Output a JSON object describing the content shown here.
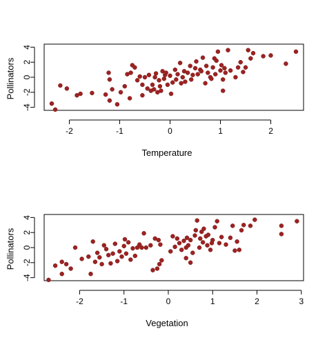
{
  "chart_data": [
    {
      "type": "scatter",
      "xlabel": "Temperature",
      "ylabel": "Pollinators",
      "xlim": [
        -2.5,
        2.65
      ],
      "ylim": [
        -4.4,
        4.4
      ],
      "xticks": [
        -2,
        -1,
        0,
        1,
        2
      ],
      "yticks": [
        -4,
        -2,
        0,
        2,
        4
      ],
      "grid": false,
      "point_color": "#9b2322",
      "points": [
        [
          -2.35,
          -3.5
        ],
        [
          -2.28,
          -4.3
        ],
        [
          -2.18,
          -1.1
        ],
        [
          -2.05,
          -1.5
        ],
        [
          -1.85,
          -2.4
        ],
        [
          -1.78,
          -2.2
        ],
        [
          -1.55,
          -2.1
        ],
        [
          -1.28,
          -2.3
        ],
        [
          -1.22,
          0.6
        ],
        [
          -1.2,
          -0.3
        ],
        [
          -1.2,
          -3.1
        ],
        [
          -1.15,
          -1.6
        ],
        [
          -1.05,
          -3.6
        ],
        [
          -0.98,
          -2.0
        ],
        [
          -0.9,
          -1.2
        ],
        [
          -0.85,
          0.4
        ],
        [
          -0.8,
          -2.8
        ],
        [
          -0.78,
          0.6
        ],
        [
          -0.75,
          1.6
        ],
        [
          -0.7,
          1.3
        ],
        [
          -0.65,
          -0.4
        ],
        [
          -0.6,
          0.1
        ],
        [
          -0.55,
          -1.0
        ],
        [
          -0.55,
          -2.4
        ],
        [
          -0.5,
          0.0
        ],
        [
          -0.45,
          -1.5
        ],
        [
          -0.42,
          0.3
        ],
        [
          -0.38,
          -1.8
        ],
        [
          -0.35,
          -1.0
        ],
        [
          -0.32,
          -1.6
        ],
        [
          -0.3,
          0.0
        ],
        [
          -0.28,
          0.5
        ],
        [
          -0.25,
          -2.0
        ],
        [
          -0.22,
          -0.4
        ],
        [
          -0.2,
          -1.2
        ],
        [
          -0.18,
          -1.8
        ],
        [
          -0.15,
          0.8
        ],
        [
          -0.12,
          -0.2
        ],
        [
          -0.1,
          0.3
        ],
        [
          -0.08,
          0.6
        ],
        [
          -0.05,
          -1.0
        ],
        [
          0.0,
          0.2
        ],
        [
          0.02,
          -2.2
        ],
        [
          0.05,
          -0.7
        ],
        [
          0.1,
          1.0
        ],
        [
          0.12,
          -0.3
        ],
        [
          0.15,
          0.4
        ],
        [
          0.2,
          1.9
        ],
        [
          0.22,
          -0.8
        ],
        [
          0.25,
          0.0
        ],
        [
          0.28,
          0.8
        ],
        [
          0.3,
          -0.6
        ],
        [
          0.35,
          0.6
        ],
        [
          0.4,
          1.5
        ],
        [
          0.42,
          -0.3
        ],
        [
          0.45,
          0.3
        ],
        [
          0.5,
          1.2
        ],
        [
          0.52,
          2.1
        ],
        [
          0.55,
          0.4
        ],
        [
          0.6,
          1.0
        ],
        [
          0.62,
          0.8
        ],
        [
          0.65,
          2.6
        ],
        [
          0.7,
          -0.8
        ],
        [
          0.72,
          1.5
        ],
        [
          0.75,
          0.6
        ],
        [
          0.8,
          0.0
        ],
        [
          0.82,
          -0.2
        ],
        [
          0.85,
          1.3
        ],
        [
          0.88,
          2.5
        ],
        [
          0.9,
          0.4
        ],
        [
          0.92,
          2.2
        ],
        [
          0.95,
          3.4
        ],
        [
          1.0,
          0.9
        ],
        [
          1.02,
          1.6
        ],
        [
          1.05,
          -0.3
        ],
        [
          1.05,
          -1.8
        ],
        [
          1.08,
          1.2
        ],
        [
          1.1,
          0.6
        ],
        [
          1.15,
          3.6
        ],
        [
          1.2,
          0.9
        ],
        [
          1.3,
          0.0
        ],
        [
          1.35,
          1.3
        ],
        [
          1.4,
          2.0
        ],
        [
          1.45,
          0.7
        ],
        [
          1.5,
          1.3
        ],
        [
          1.55,
          3.6
        ],
        [
          1.6,
          2.5
        ],
        [
          1.65,
          3.2
        ],
        [
          1.85,
          2.8
        ],
        [
          2.0,
          2.9
        ],
        [
          2.3,
          1.8
        ],
        [
          2.5,
          3.4
        ]
      ]
    },
    {
      "type": "scatter",
      "xlabel": "Vegetation",
      "ylabel": "Pollinators",
      "xlim": [
        -2.8,
        3.05
      ],
      "ylim": [
        -4.4,
        4.4
      ],
      "xticks": [
        -2,
        -1,
        0,
        1,
        2,
        3
      ],
      "yticks": [
        -4,
        -2,
        0,
        2,
        4
      ],
      "grid": false,
      "point_color": "#9b2322",
      "points": [
        [
          -2.7,
          -4.3
        ],
        [
          -2.55,
          -2.4
        ],
        [
          -2.4,
          -1.9
        ],
        [
          -2.4,
          -3.5
        ],
        [
          -2.3,
          -2.2
        ],
        [
          -2.2,
          -2.8
        ],
        [
          -2.1,
          0.0
        ],
        [
          -1.95,
          -1.5
        ],
        [
          -1.8,
          -1.2
        ],
        [
          -1.75,
          -3.5
        ],
        [
          -1.7,
          0.8
        ],
        [
          -1.65,
          -1.9
        ],
        [
          -1.6,
          -0.7
        ],
        [
          -1.55,
          -1.3
        ],
        [
          -1.5,
          -2.2
        ],
        [
          -1.45,
          0.3
        ],
        [
          -1.4,
          -0.2
        ],
        [
          -1.35,
          -1.0
        ],
        [
          -1.3,
          -2.1
        ],
        [
          -1.25,
          -0.8
        ],
        [
          -1.2,
          0.5
        ],
        [
          -1.15,
          -1.8
        ],
        [
          -1.1,
          -0.5
        ],
        [
          -1.05,
          -1.2
        ],
        [
          -1.0,
          0.2
        ],
        [
          -0.98,
          1.1
        ],
        [
          -0.95,
          -0.8
        ],
        [
          -0.9,
          0.7
        ],
        [
          -0.85,
          -1.6
        ],
        [
          -0.8,
          -0.1
        ],
        [
          -0.75,
          -1.1
        ],
        [
          -0.7,
          0.0
        ],
        [
          -0.65,
          0.4
        ],
        [
          -0.6,
          0.0
        ],
        [
          -0.55,
          1.9
        ],
        [
          -0.5,
          0.0
        ],
        [
          -0.4,
          0.3
        ],
        [
          -0.35,
          -3.0
        ],
        [
          -0.3,
          1.2
        ],
        [
          -0.25,
          -2.8
        ],
        [
          -0.22,
          1.0
        ],
        [
          -0.2,
          -2.2
        ],
        [
          -0.18,
          0.4
        ],
        [
          -0.15,
          -1.7
        ],
        [
          0.05,
          -0.5
        ],
        [
          0.1,
          1.5
        ],
        [
          0.15,
          0.1
        ],
        [
          0.2,
          1.2
        ],
        [
          0.25,
          0.6
        ],
        [
          0.3,
          -0.3
        ],
        [
          0.35,
          0.9
        ],
        [
          0.4,
          0.0
        ],
        [
          0.4,
          -1.4
        ],
        [
          0.42,
          1.3
        ],
        [
          0.45,
          0.3
        ],
        [
          0.5,
          1.0
        ],
        [
          0.5,
          -2.0
        ],
        [
          0.55,
          -0.7
        ],
        [
          0.6,
          1.6
        ],
        [
          0.62,
          2.3
        ],
        [
          0.65,
          3.6
        ],
        [
          0.7,
          0.0
        ],
        [
          0.72,
          1.2
        ],
        [
          0.75,
          2.1
        ],
        [
          0.78,
          0.7
        ],
        [
          0.8,
          2.5
        ],
        [
          0.85,
          1.5
        ],
        [
          0.88,
          0.3
        ],
        [
          0.9,
          1.7
        ],
        [
          0.95,
          -0.3
        ],
        [
          0.98,
          0.6
        ],
        [
          1.0,
          1.0
        ],
        [
          1.05,
          2.7
        ],
        [
          1.1,
          3.5
        ],
        [
          1.15,
          0.6
        ],
        [
          1.2,
          1.4
        ],
        [
          1.3,
          0.4
        ],
        [
          1.4,
          1.3
        ],
        [
          1.45,
          2.9
        ],
        [
          1.5,
          -0.4
        ],
        [
          1.55,
          0.8
        ],
        [
          1.6,
          -0.3
        ],
        [
          1.65,
          2.3
        ],
        [
          1.7,
          3.0
        ],
        [
          1.85,
          2.9
        ],
        [
          1.95,
          3.7
        ],
        [
          2.55,
          2.9
        ],
        [
          2.55,
          1.8
        ],
        [
          2.9,
          3.5
        ]
      ]
    }
  ]
}
